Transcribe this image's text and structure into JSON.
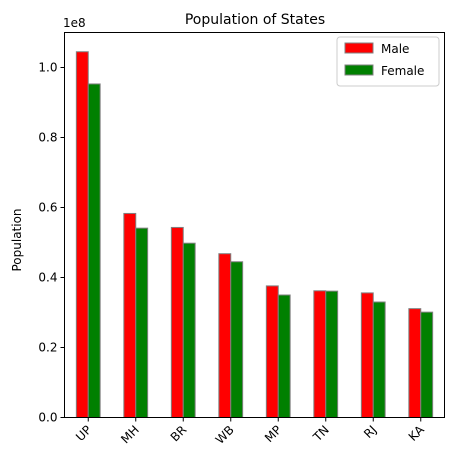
{
  "chart_data": {
    "type": "bar",
    "title": "Population of States",
    "ylabel": "Population",
    "xlabel": "",
    "offset_label": "1e8",
    "categories": [
      "UP",
      "MH",
      "BR",
      "WB",
      "MP",
      "TN",
      "RJ",
      "KA"
    ],
    "series": [
      {
        "name": "Male",
        "color": "#ff0000",
        "values": [
          104500000,
          58300000,
          54300000,
          46800000,
          37600000,
          36200000,
          35600000,
          31100000
        ]
      },
      {
        "name": "Female",
        "color": "#008000",
        "values": [
          95300000,
          54100000,
          49800000,
          44500000,
          35000000,
          36100000,
          33000000,
          30100000
        ]
      }
    ],
    "ylim": [
      0,
      110000000
    ],
    "yticks": [
      0,
      20000000,
      40000000,
      60000000,
      80000000,
      100000000
    ],
    "ytick_labels": [
      "0.0",
      "0.2",
      "0.4",
      "0.6",
      "0.8",
      "1.0"
    ],
    "legend_position": "top-right",
    "grid": false,
    "bar_edge_color": "#808080"
  }
}
